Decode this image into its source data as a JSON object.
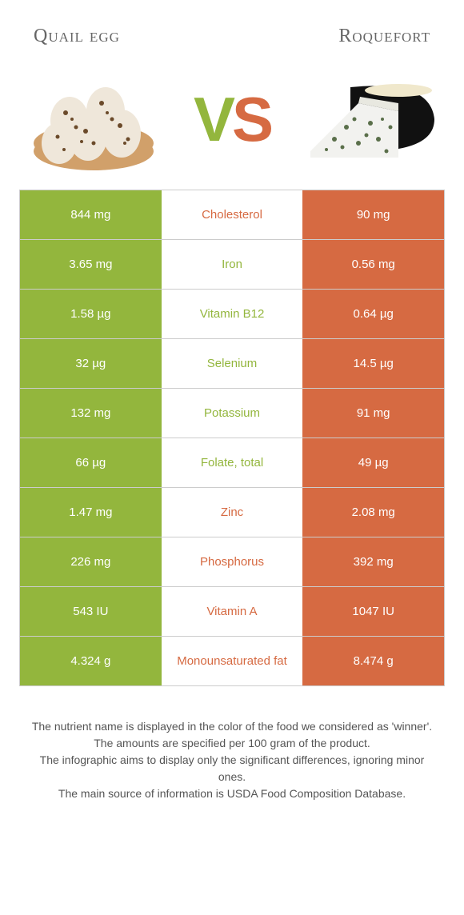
{
  "titles": {
    "left": "Quail egg",
    "right": "Roquefort"
  },
  "vs": {
    "v": "V",
    "s": "S"
  },
  "colors": {
    "green": "#93b63d",
    "orange": "#d66a42"
  },
  "nutrients": [
    {
      "name": "Cholesterol",
      "winner": "orange",
      "left": "844 mg",
      "right": "90 mg"
    },
    {
      "name": "Iron",
      "winner": "green",
      "left": "3.65 mg",
      "right": "0.56 mg"
    },
    {
      "name": "Vitamin B12",
      "winner": "green",
      "left": "1.58 µg",
      "right": "0.64 µg"
    },
    {
      "name": "Selenium",
      "winner": "green",
      "left": "32 µg",
      "right": "14.5 µg"
    },
    {
      "name": "Potassium",
      "winner": "green",
      "left": "132 mg",
      "right": "91 mg"
    },
    {
      "name": "Folate, total",
      "winner": "green",
      "left": "66 µg",
      "right": "49 µg"
    },
    {
      "name": "Zinc",
      "winner": "orange",
      "left": "1.47 mg",
      "right": "2.08 mg"
    },
    {
      "name": "Phosphorus",
      "winner": "orange",
      "left": "226 mg",
      "right": "392 mg"
    },
    {
      "name": "Vitamin A",
      "winner": "orange",
      "left": "543 IU",
      "right": "1047 IU"
    },
    {
      "name": "Monounsaturated fat",
      "winner": "orange",
      "left": "4.324 g",
      "right": "8.474 g"
    }
  ],
  "footer": {
    "l1": "The nutrient name is displayed in the color of the food we considered as 'winner'.",
    "l2": "The amounts are specified per 100 gram of the product.",
    "l3": "The infographic aims to display only the significant differences, ignoring minor ones.",
    "l4": "The main source of information is USDA Food Composition Database."
  }
}
